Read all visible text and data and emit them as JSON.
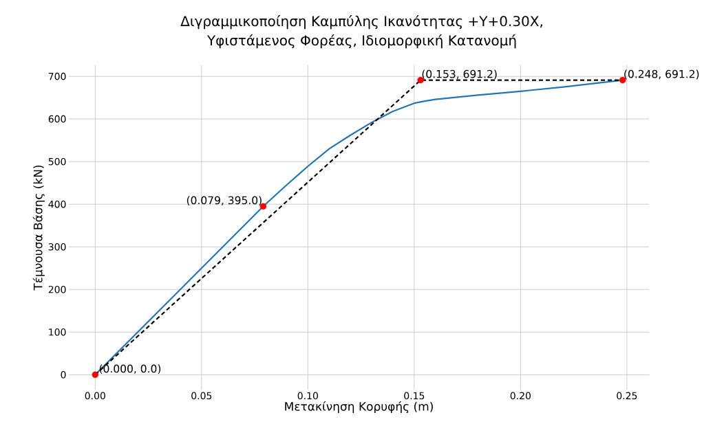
{
  "chart_data": {
    "type": "line",
    "title": "Διγραμμικοποίηση Καμπύλης Ικανότητας +Y+0.30X,",
    "subtitle": "Υφιστάμενος Φορέας, Ιδιομορφική Κατανομή",
    "xlabel": "Μετακίνηση Κορυφής (m)",
    "ylabel": "Τέμνουσα Βάσης (kN)",
    "series": [
      {
        "color": "#1f77b4",
        "line_style": "solid",
        "marker": "none",
        "x": [
          0,
          0.025,
          0.05,
          0.079,
          0.09,
          0.1,
          0.11,
          0.12,
          0.13,
          0.14,
          0.15,
          0.155,
          0.16,
          0.18,
          0.2,
          0.22,
          0.248
        ],
        "values": [
          0,
          125,
          250,
          395,
          445,
          489,
          530,
          562,
          592,
          618,
          637,
          642,
          646,
          656,
          665,
          675,
          691
        ]
      },
      {
        "color": "#000000",
        "line_style": "dashed",
        "marker": "none",
        "x": [
          0,
          0.153,
          0.248
        ],
        "values": [
          0,
          691,
          691
        ]
      },
      {
        "type": "scatter",
        "color": "#ff0000",
        "x": [
          0,
          0.079,
          0.153,
          0.248
        ],
        "values": [
          0,
          395.0,
          691.2,
          691.2
        ],
        "value_labels": [
          "(0.000, 0.0)",
          "(0.079, 395.0)",
          "(0.153, 691.2)",
          "(0.248, 691.2)"
        ]
      }
    ],
    "xlim": [
      -0.0124,
      0.2604
    ],
    "ylim": [
      -35,
      726
    ],
    "xticks": [
      {
        "value": 0,
        "label": "0.00"
      },
      0.05,
      {
        "value": 0.1,
        "label": "0.10"
      },
      0.15,
      {
        "value": 0.2,
        "label": "0.20"
      },
      0.25
    ],
    "yticks": [
      0,
      100,
      200,
      300,
      400,
      500,
      600,
      700
    ],
    "grid": true
  }
}
